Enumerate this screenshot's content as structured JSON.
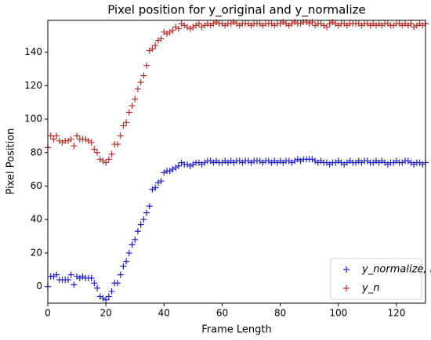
{
  "chart_data": {
    "type": "scatter",
    "title": "Pixel position for y_original and y_normalize",
    "x_label": "Frame Length",
    "y_label": "Pixel Position",
    "x": [
      0,
      1,
      2,
      3,
      4,
      5,
      6,
      7,
      8,
      9,
      10,
      11,
      12,
      13,
      14,
      15,
      16,
      17,
      18,
      19,
      20,
      21,
      22,
      23,
      24,
      25,
      26,
      27,
      28,
      29,
      30,
      31,
      32,
      33,
      34,
      35,
      36,
      37,
      38,
      39,
      40,
      41,
      42,
      43,
      44,
      45,
      46,
      47,
      48,
      49,
      50,
      51,
      52,
      53,
      54,
      55,
      56,
      57,
      58,
      59,
      60,
      61,
      62,
      63,
      64,
      65,
      66,
      67,
      68,
      69,
      70,
      71,
      72,
      73,
      74,
      75,
      76,
      77,
      78,
      79,
      80,
      81,
      82,
      83,
      84,
      85,
      86,
      87,
      88,
      89,
      90,
      91,
      92,
      93,
      94,
      95,
      96,
      97,
      98,
      99,
      100,
      101,
      102,
      103,
      104,
      105,
      106,
      107,
      108,
      109,
      110,
      111,
      112,
      113,
      114,
      115,
      116,
      117,
      118,
      119,
      120,
      121,
      122,
      123,
      124,
      125,
      126,
      127,
      128,
      129,
      130
    ],
    "series": [
      {
        "name": "y_normalize, n",
        "color": "#1f1fc8",
        "values": [
          0,
          6,
          6,
          7,
          4,
          4,
          4,
          4,
          7,
          1,
          6,
          5,
          6,
          5,
          5,
          5,
          2,
          -1,
          -6,
          -7,
          -8,
          -6,
          -3,
          2,
          2,
          7,
          12,
          15,
          20,
          25,
          28,
          33,
          37,
          40,
          44,
          48,
          58,
          59,
          62,
          63,
          68,
          69,
          69,
          70,
          71,
          72,
          74,
          73,
          73,
          72,
          73,
          74,
          74,
          73,
          74,
          75,
          75,
          74,
          75,
          74,
          74,
          75,
          74,
          75,
          74,
          75,
          75,
          74,
          75,
          75,
          74,
          75,
          75,
          75,
          74,
          75,
          75,
          74,
          75,
          74,
          75,
          74,
          75,
          75,
          74,
          75,
          76,
          75,
          76,
          76,
          76,
          76,
          75,
          74,
          75,
          74,
          74,
          73,
          74,
          74,
          75,
          74,
          73,
          74,
          75,
          74,
          74,
          75,
          74,
          75,
          75,
          74,
          74,
          75,
          74,
          75,
          74,
          73,
          74,
          74,
          75,
          74,
          74,
          75,
          75,
          74,
          73,
          74,
          74,
          73,
          74
        ]
      },
      {
        "name": "y_n",
        "color": "#b5322a",
        "values": [
          83,
          90,
          88,
          90,
          87,
          86,
          87,
          87,
          88,
          84,
          90,
          88,
          88,
          88,
          87,
          86,
          82,
          80,
          76,
          75,
          74,
          76,
          79,
          85,
          85,
          90,
          96,
          98,
          104,
          108,
          112,
          118,
          122,
          126,
          132,
          141,
          142,
          144,
          147,
          148,
          152,
          151,
          152,
          153,
          155,
          154,
          157,
          156,
          155,
          154,
          155,
          156,
          157,
          155,
          156,
          157,
          156,
          157,
          158,
          157,
          157,
          156,
          157,
          157,
          158,
          157,
          156,
          157,
          157,
          157,
          156,
          157,
          157,
          157,
          156,
          157,
          157,
          157,
          156,
          157,
          157,
          158,
          157,
          156,
          157,
          158,
          157,
          157,
          158,
          158,
          157,
          158,
          156,
          157,
          157,
          156,
          155,
          157,
          158,
          157,
          156,
          157,
          157,
          156,
          157,
          157,
          157,
          157,
          156,
          157,
          157,
          156,
          157,
          156,
          157,
          156,
          157,
          157,
          156,
          156,
          157,
          157,
          156,
          157,
          156,
          157,
          155,
          156,
          157,
          156,
          157
        ]
      }
    ],
    "xlim": [
      0,
      130
    ],
    "xticks": [
      0,
      20,
      40,
      60,
      80,
      100,
      120
    ],
    "ylim": [
      -10,
      159
    ],
    "yticks": [
      0,
      20,
      40,
      60,
      80,
      100,
      120,
      140
    ],
    "legend": "lower right"
  }
}
